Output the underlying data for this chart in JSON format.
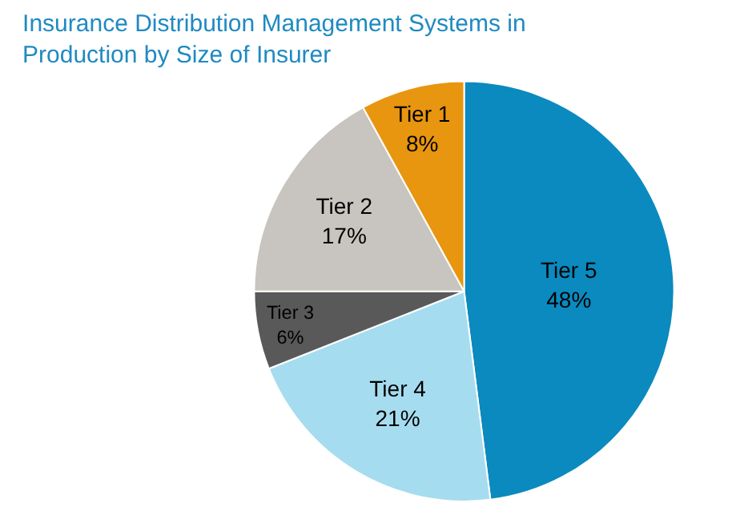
{
  "chart_data": {
    "type": "pie",
    "title": "Insurance Distribution Management Systems in Production by Size of Insurer",
    "categories": [
      "Tier 5",
      "Tier 4",
      "Tier 3",
      "Tier 2",
      "Tier 1"
    ],
    "values": [
      48,
      21,
      6,
      17,
      8
    ],
    "value_labels": [
      "48%",
      "21%",
      "6%",
      "17%",
      "8%"
    ],
    "colors": [
      "#0a8abf",
      "#a6dcef",
      "#595959",
      "#c8c4bf",
      "#e8960f"
    ],
    "legend": false
  }
}
